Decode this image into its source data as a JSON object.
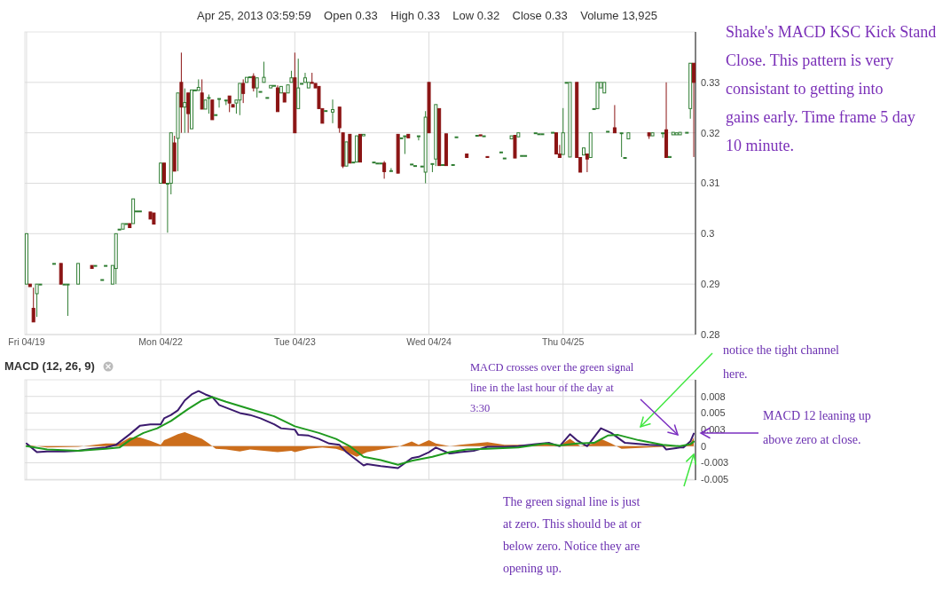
{
  "chart_data": [
    {
      "type": "candlestick",
      "annotations": [
        "Apr 25, 2013 03:59:59    Open 0.33    High 0.33    Low 0.32    Close 0.33    Volume 13,925",
        "Shake's MACD KSC Kick Stand Close.   This pattern is very consistant to getting into gains early. Time frame 5 day 10 minute."
      ],
      "categories": [
        "Fri 04/19",
        null,
        null,
        null,
        null,
        null,
        null,
        null,
        null,
        null,
        null,
        null,
        null,
        null,
        null,
        null,
        null,
        null,
        null,
        null,
        null,
        null,
        null,
        null,
        null,
        null,
        null,
        null,
        null,
        null,
        null,
        null,
        null,
        null,
        null,
        null,
        null,
        null,
        null,
        "Mon 04/22",
        null,
        null,
        null,
        null,
        null,
        null,
        null,
        null,
        null,
        null,
        null,
        null,
        null,
        null,
        null,
        null,
        null,
        null,
        null,
        null,
        null,
        null,
        null,
        null,
        null,
        null,
        null,
        null,
        null,
        null,
        null,
        null,
        null,
        null,
        null,
        null,
        null,
        null,
        "Tue 04/23",
        null,
        null,
        null,
        null,
        null,
        null,
        null,
        null,
        null,
        null,
        null,
        null,
        null,
        null,
        null,
        null,
        null,
        null,
        null,
        null,
        null,
        null,
        null,
        null,
        null,
        null,
        null,
        null,
        null,
        null,
        null,
        null,
        null,
        null,
        null,
        null,
        null,
        null,
        "Wed 04/24",
        null,
        null,
        null,
        null,
        null,
        null,
        null,
        null,
        null,
        null,
        null,
        null,
        null,
        null,
        null,
        null,
        null,
        null,
        null,
        null,
        null,
        null,
        null,
        null,
        null,
        null,
        null,
        null,
        null,
        null,
        null,
        null,
        null,
        null,
        null,
        null,
        null,
        null,
        "Thu 04/25",
        null,
        null,
        null,
        null,
        null,
        null,
        null,
        null,
        null,
        null,
        null,
        null,
        null,
        null,
        null,
        null,
        null,
        null,
        null,
        null,
        null,
        null,
        null,
        null,
        null,
        null,
        null,
        null,
        null,
        null,
        null,
        null,
        null,
        null,
        null,
        null,
        null,
        null
      ],
      "ylim": [
        0.28,
        0.34
      ],
      "yticks": [
        0.28,
        0.29,
        0.3,
        0.31,
        0.32,
        0.33
      ],
      "grid": true,
      "ohlc": [
        [
          0.29,
          0.3,
          0.29,
          0.3
        ],
        [
          0.29,
          0.29,
          0.2895,
          0.2895
        ],
        [
          0.2852,
          0.2893,
          0.2825,
          0.2825
        ],
        [
          0.2881,
          0.29,
          0.2835,
          0.29
        ],
        [
          0.29,
          0.29,
          0.29,
          0.29
        ],
        null,
        null,
        null,
        [
          0.2941,
          0.2941,
          0.2941,
          0.2941
        ],
        null,
        [
          0.2941,
          0.2941,
          0.29,
          0.29
        ],
        [
          0.29,
          0.29,
          0.29,
          0.29
        ],
        [
          0.29,
          0.29,
          0.2837,
          0.29
        ],
        null,
        null,
        [
          0.29,
          0.2941,
          0.29,
          0.2941
        ],
        null,
        null,
        null,
        [
          0.2937,
          0.2937,
          0.2931,
          0.2931
        ],
        [
          0.2937,
          0.2937,
          0.2937,
          0.2937
        ],
        null,
        [
          0.2909,
          0.2909,
          0.2909,
          0.2909
        ],
        [
          0.2937,
          0.2937,
          0.2937,
          0.2937
        ],
        null,
        [
          0.29,
          0.2937,
          0.29,
          0.2937
        ],
        [
          0.2931,
          0.3,
          0.29,
          0.3
        ],
        [
          0.3009,
          0.3009,
          0.3009,
          0.3009
        ],
        [
          0.3009,
          0.302,
          0.3009,
          0.302
        ],
        [
          0.302,
          0.302,
          0.302,
          0.302
        ],
        [
          0.302,
          0.302,
          0.3012,
          0.3012
        ],
        [
          0.302,
          0.3069,
          0.302,
          0.3069
        ],
        [
          0.3045,
          0.3045,
          0.3045,
          0.3045
        ],
        [
          0.3045,
          0.3045,
          0.3045,
          0.3045
        ],
        null,
        null,
        [
          0.3043,
          0.3043,
          0.3029,
          0.3029
        ],
        [
          0.3041,
          0.3041,
          0.3019,
          0.3019
        ],
        null,
        [
          0.31,
          0.314,
          0.31,
          0.314
        ],
        [
          0.314,
          0.314,
          0.31,
          0.31
        ],
        [
          0.31,
          0.31,
          0.3002,
          0.31
        ],
        [
          0.31,
          0.32,
          0.3078,
          0.32
        ],
        [
          0.318,
          0.3194,
          0.3124,
          0.3124
        ],
        [
          0.3189,
          0.3279,
          0.3124,
          0.3279
        ],
        [
          0.33,
          0.3359,
          0.32,
          0.3251
        ],
        [
          0.3251,
          0.3288,
          0.32,
          0.326
        ],
        [
          0.3279,
          0.3279,
          0.32,
          0.3238
        ],
        [
          0.3208,
          0.3285,
          0.3208,
          0.3285
        ],
        [
          0.3285,
          0.3285,
          0.3285,
          0.3285
        ],
        [
          0.3284,
          0.3306,
          0.3284,
          0.329
        ],
        [
          0.3279,
          0.3306,
          0.3247,
          0.3247
        ],
        [
          0.3247,
          0.3265,
          0.3247,
          0.3265
        ],
        [
          0.327,
          0.3276,
          0.3238,
          0.327
        ],
        [
          0.3265,
          0.3265,
          0.3226,
          0.3226
        ],
        [
          0.3236,
          0.3236,
          0.3236,
          0.3236
        ],
        [
          0.3268,
          0.3268,
          0.325,
          0.3268
        ],
        null,
        [
          0.3265,
          0.3265,
          0.3255,
          0.3265
        ],
        [
          0.3273,
          0.3273,
          0.3241,
          0.3259
        ],
        [
          0.3256,
          0.3256,
          0.3251,
          0.3251
        ],
        [
          0.3259,
          0.3265,
          0.3238,
          0.3265
        ],
        [
          0.3265,
          0.3298,
          0.3235,
          0.3298
        ],
        [
          0.3298,
          0.3306,
          0.3259,
          0.3278
        ],
        [
          0.33,
          0.331,
          0.33,
          0.331
        ],
        [
          0.3311,
          0.3311,
          0.3311,
          0.3311
        ],
        [
          0.3312,
          0.3318,
          0.3282,
          0.3289
        ],
        [
          0.3289,
          0.3309,
          0.327,
          0.3309
        ],
        [
          0.3282,
          0.3282,
          0.3282,
          0.3282
        ],
        [
          0.33,
          0.3341,
          0.33,
          0.331
        ],
        [
          0.327,
          0.327,
          0.327,
          0.327
        ],
        [
          0.3289,
          0.3294,
          0.3289,
          0.3294
        ],
        [
          0.3294,
          0.3294,
          0.3294,
          0.3294
        ],
        [
          0.3289,
          0.3294,
          0.3242,
          0.3242
        ],
        [
          0.3279,
          0.3292,
          0.3279,
          0.3292
        ],
        [
          0.3279,
          0.3279,
          0.3261,
          0.3261
        ],
        [
          0.3279,
          0.3295,
          0.3279,
          0.3295
        ],
        [
          0.33,
          0.3323,
          0.33,
          0.3309
        ],
        [
          0.3309,
          0.3359,
          0.32,
          0.32
        ],
        [
          0.3248,
          0.3347,
          0.3248,
          0.3289
        ],
        [
          0.3298,
          0.3298,
          0.3298,
          0.3298
        ],
        [
          0.33,
          0.3319,
          0.33,
          0.3309
        ],
        [
          0.3289,
          0.33,
          0.3289,
          0.33
        ],
        [
          0.33,
          0.3319,
          0.3298,
          0.3298
        ],
        [
          0.3298,
          0.3298,
          0.3289,
          0.3289
        ],
        [
          0.3292,
          0.3292,
          0.3248,
          0.3248
        ],
        [
          0.3248,
          0.3248,
          0.3219,
          0.3219
        ],
        [
          0.3244,
          0.3244,
          0.3244,
          0.3244
        ],
        null,
        [
          0.3241,
          0.3266,
          0.3219,
          0.3246
        ],
        null,
        [
          0.3251,
          0.3251,
          0.32,
          0.321
        ],
        [
          0.32,
          0.32,
          0.313,
          0.3134
        ],
        [
          0.3134,
          0.3182,
          0.3134,
          0.3182
        ],
        [
          0.3197,
          0.3197,
          0.314,
          0.314
        ],
        [
          0.3142,
          0.3142,
          0.3142,
          0.3142
        ],
        [
          0.3142,
          0.3194,
          0.3142,
          0.3194
        ],
        [
          0.3197,
          0.3197,
          0.3142,
          0.3142
        ],
        [
          0.3194,
          0.3197,
          0.3194,
          0.3197
        ],
        null,
        null,
        [
          0.3142,
          0.3142,
          0.3142,
          0.3142
        ],
        [
          0.314,
          0.314,
          0.314,
          0.314
        ],
        [
          0.314,
          0.314,
          0.314,
          0.314
        ],
        [
          0.314,
          0.3144,
          0.3109,
          0.3123
        ],
        null,
        [
          0.3125,
          0.313,
          0.3125,
          0.3125
        ],
        null,
        [
          0.3197,
          0.3197,
          0.312,
          0.312
        ],
        [
          0.319,
          0.319,
          0.319,
          0.319
        ],
        [
          0.3194,
          0.3194,
          0.3158,
          0.3194
        ],
        [
          0.3197,
          0.3197,
          0.319,
          0.319
        ],
        [
          0.3138,
          0.3138,
          0.3138,
          0.3138
        ],
        [
          0.3135,
          0.3135,
          0.3135,
          0.3135
        ],
        [
          0.3194,
          0.3194,
          0.3185,
          0.3194
        ],
        [
          0.3134,
          0.3134,
          0.3134,
          0.3134
        ],
        [
          0.3122,
          0.3243,
          0.31,
          0.3231
        ],
        [
          0.33,
          0.33,
          0.32,
          0.32
        ],
        [
          0.3139,
          0.3139,
          0.3122,
          0.3139
        ],
        [
          0.3148,
          0.3256,
          0.3134,
          0.3256
        ],
        [
          0.3248,
          0.3248,
          0.3135,
          0.3135
        ],
        [
          0.3137,
          0.3137,
          0.3137,
          0.3137
        ],
        [
          0.3198,
          0.3198,
          0.3135,
          0.3135
        ],
        null,
        [
          0.3137,
          0.3137,
          0.3137,
          0.3137
        ],
        [
          0.3192,
          0.3192,
          0.3192,
          0.3192
        ],
        null,
        null,
        [
          0.3158,
          0.3158,
          0.3151,
          0.3151
        ],
        null,
        null,
        [
          0.3195,
          0.3195,
          0.3195,
          0.3195
        ],
        [
          0.3196,
          0.3196,
          0.3194,
          0.3194
        ],
        [
          0.3194,
          0.3194,
          0.3194,
          0.3194
        ],
        [
          0.3153,
          0.3153,
          0.3151,
          0.3151
        ],
        null,
        null,
        null,
        [
          0.3162,
          0.3162,
          0.3162,
          0.3162
        ],
        [
          0.315,
          0.315,
          0.315,
          0.315
        ],
        null,
        [
          0.3188,
          0.3194,
          0.3188,
          0.3194
        ],
        [
          0.3195,
          0.3195,
          0.315,
          0.315
        ],
        [
          0.3192,
          0.32,
          0.3192,
          0.32
        ],
        [
          0.3155,
          0.3155,
          0.3155,
          0.3155
        ],
        [
          0.3155,
          0.3155,
          0.3155,
          0.3155
        ],
        null,
        null,
        [
          0.32,
          0.32,
          0.32,
          0.32
        ],
        [
          0.3198,
          0.3198,
          0.3198,
          0.3198
        ],
        [
          0.3198,
          0.3198,
          0.3198,
          0.3198
        ],
        null,
        null,
        [
          0.3201,
          0.3201,
          0.3201,
          0.3201
        ],
        [
          0.32,
          0.32,
          0.3158,
          0.3158
        ],
        [
          0.3158,
          0.3176,
          0.3151,
          0.3151
        ],
        [
          0.3157,
          0.3249,
          0.3157,
          0.32
        ],
        [
          0.33,
          0.33,
          0.33,
          0.33
        ],
        [
          0.3152,
          0.33,
          0.3152,
          0.33
        ],
        null,
        [
          0.33,
          0.33,
          0.3151,
          0.3151
        ],
        [
          0.3151,
          0.3151,
          0.3122,
          0.3122
        ],
        [
          0.3156,
          0.317,
          0.3156,
          0.317
        ],
        [
          0.3158,
          0.3158,
          0.3122,
          0.3148
        ],
        [
          0.3151,
          0.32,
          0.3151,
          0.32
        ],
        [
          0.3248,
          0.3248,
          0.3248,
          0.3248
        ],
        [
          0.3248,
          0.33,
          0.3248,
          0.33
        ],
        [
          0.3289,
          0.33,
          0.3289,
          0.33
        ],
        [
          0.3279,
          0.33,
          0.3279,
          0.33
        ],
        [
          0.3203,
          0.3203,
          0.3203,
          0.3203
        ],
        null,
        [
          0.321,
          0.3255,
          0.32,
          0.32
        ],
        null,
        [
          0.32,
          0.32,
          0.3152,
          0.32
        ],
        [
          0.3151,
          0.3151,
          0.3151,
          0.3151
        ],
        [
          0.3188,
          0.32,
          0.3188,
          0.32
        ],
        null,
        null,
        null,
        null,
        null,
        [
          0.32,
          0.32,
          0.3188,
          0.3194
        ],
        [
          0.3194,
          0.32,
          0.3194,
          0.32
        ],
        null,
        null,
        [
          0.32,
          0.32,
          0.319,
          0.32
        ],
        [
          0.3206,
          0.33,
          0.3151,
          0.3151
        ],
        [
          0.3151,
          0.3153,
          0.3151,
          0.3153
        ],
        [
          0.3196,
          0.3201,
          0.3196,
          0.3201
        ],
        [
          0.3196,
          0.32,
          0.3196,
          0.32
        ],
        [
          0.3196,
          0.3201,
          0.3196,
          0.3201
        ],
        null,
        [
          0.3201,
          0.3201,
          0.3201,
          0.3201
        ],
        [
          0.3248,
          0.3338,
          0.3228,
          0.3338
        ],
        [
          0.3338,
          0.3338,
          0.3152,
          0.33
        ]
      ]
    },
    {
      "type": "line",
      "title": "MACD (12, 26, 9)",
      "annotations": [
        "MACD crosses over the green signal line in the last hour of the day at 3:30",
        "notice the tight channel here.",
        "MACD 12 leaning up above zero at close.",
        "The green signal line is just at zero.  This should be at or below zero.  Notice they are opening up."
      ],
      "categories": [
        null,
        null,
        null,
        null,
        null,
        null,
        null,
        null,
        null,
        null,
        null,
        null,
        null,
        null,
        null,
        null,
        null,
        null,
        null,
        null,
        null,
        null,
        null,
        null,
        null,
        null,
        null,
        null,
        null,
        null,
        null,
        null,
        null,
        null,
        null,
        null,
        null,
        null,
        null,
        null,
        null,
        null,
        null,
        null,
        null,
        null,
        null,
        null,
        null,
        null,
        null,
        null,
        null,
        null,
        null,
        null,
        null,
        null,
        null,
        null,
        null,
        null,
        null,
        null,
        null,
        null,
        null,
        null,
        null,
        null,
        null,
        null,
        null,
        null,
        null,
        null,
        null,
        null,
        null,
        null,
        null,
        null,
        null,
        null,
        null,
        null,
        null,
        null,
        null,
        null,
        null,
        null,
        null,
        null,
        null,
        null,
        null,
        null,
        null,
        null,
        null,
        null,
        null,
        null,
        null,
        null,
        null,
        null,
        null,
        null,
        null,
        null,
        null,
        null,
        null,
        null,
        null,
        null,
        null,
        null,
        null,
        null,
        null,
        null,
        null,
        null,
        null,
        null,
        null,
        null,
        null,
        null,
        null,
        null,
        null,
        null,
        null,
        null,
        null,
        null,
        null,
        null,
        null,
        null,
        null,
        null,
        null,
        null,
        null,
        null,
        null,
        null,
        null,
        null,
        null,
        null,
        null,
        null,
        null,
        null,
        null,
        null,
        null,
        null,
        null,
        null,
        null,
        null,
        null,
        null,
        null,
        null,
        null,
        null,
        null,
        null,
        null,
        null,
        null,
        null,
        null,
        null,
        null,
        null,
        null,
        null,
        null,
        null,
        null,
        null,
        null,
        null,
        null,
        null,
        null
      ],
      "ylim": [
        -0.0051,
        0.01
      ],
      "yticks": [
        {
          "value": 0.0075,
          "label": "0.008"
        },
        0.005,
        {
          "value": 0.0025,
          "label": "0.003"
        },
        0,
        {
          "value": -0.0025,
          "label": "-0.003"
        },
        -0.005
      ],
      "grid": true,
      "series": [
        {
          "type": "area",
          "color": "#cc6e1c",
          "values": [
            0.0002,
            null,
            null,
            null,
            null,
            null,
            -0.0002,
            null,
            null,
            null,
            null,
            null,
            null,
            null,
            null,
            -0.0001,
            null,
            null,
            null,
            null,
            null,
            null,
            null,
            0.0004,
            null,
            null,
            null,
            0.0004,
            null,
            null,
            0.0013,
            null,
            null,
            0.0013,
            null,
            null,
            0.0008,
            null,
            null,
            0.0002,
            0.0009,
            0.0011,
            null,
            null,
            0.0018,
            null,
            0.0021,
            null,
            0.0017,
            null,
            null,
            0.0011,
            null,
            0.0004,
            null,
            -0.0004,
            null,
            null,
            -0.0005,
            null,
            null,
            null,
            -0.0008,
            null,
            null,
            -0.0005,
            null,
            null,
            null,
            -0.0007,
            null,
            null,
            null,
            -0.0009,
            null,
            null,
            null,
            -0.0007,
            -0.0009,
            null,
            null,
            null,
            -0.0004,
            null,
            null,
            null,
            -0.0002,
            null,
            null,
            null,
            -0.0004,
            null,
            null,
            -0.0009,
            null,
            null,
            -0.0016,
            null,
            null,
            -0.0009,
            null,
            null,
            null,
            -0.0005,
            null,
            null,
            null,
            null,
            -0.0001,
            null,
            null,
            null,
            0.0007,
            null,
            0.0002,
            null,
            null,
            0.0009,
            null,
            0.0004,
            null,
            null,
            null,
            0,
            null,
            null,
            0.0002,
            null,
            null,
            null,
            null,
            null,
            null,
            null,
            0.0006,
            null,
            null,
            null,
            null,
            0.0002,
            null,
            null,
            null,
            null,
            null,
            null,
            null,
            null,
            0.0002,
            null,
            null,
            null,
            0.0004,
            null,
            null,
            0.0001,
            null,
            null,
            0.0011,
            null,
            null,
            0,
            null,
            null,
            null,
            0.0004,
            null,
            0.0011,
            null,
            null,
            0.0004,
            null,
            null,
            -0.0004,
            null,
            null,
            null,
            null,
            null,
            null,
            null,
            -0.0002,
            null,
            null,
            null,
            -0.0001,
            null,
            null,
            null,
            null,
            0,
            null,
            null,
            0.0004,
            0.0013
          ]
        },
        {
          "type": "line",
          "color": "#3b1a6e",
          "values": [
            0.0004,
            null,
            null,
            -0.0009,
            null,
            null,
            -0.0008,
            null,
            null,
            null,
            null,
            -0.0008,
            null,
            null,
            null,
            -0.0007,
            null,
            null,
            null,
            -0.0004,
            null,
            null,
            null,
            -0.0002,
            null,
            null,
            0.0002,
            null,
            null,
            null,
            0.0018,
            null,
            null,
            0.0031,
            null,
            null,
            0.0033,
            null,
            null,
            0.0033,
            0.0042,
            null,
            0.0047,
            null,
            0.0054,
            null,
            0.0069,
            null,
            0.0078,
            null,
            0.0083,
            null,
            0.0078,
            null,
            0.0074,
            null,
            0.0062,
            null,
            0.0058,
            null,
            null,
            null,
            0.005,
            null,
            null,
            0.0047,
            null,
            null,
            0.0042,
            null,
            null,
            null,
            0.0033,
            null,
            0.0027,
            null,
            null,
            null,
            0.0025,
            0.0017,
            null,
            null,
            0.0016,
            null,
            null,
            0.0011,
            null,
            null,
            0.0004,
            null,
            null,
            0.0002,
            null,
            -0.0009,
            null,
            null,
            null,
            null,
            -0.0029,
            -0.0027,
            null,
            null,
            null,
            -0.003,
            null,
            null,
            null,
            null,
            -0.0033,
            null,
            null,
            null,
            -0.0018,
            null,
            -0.0016,
            null,
            null,
            -0.0009,
            null,
            -0.0002,
            null,
            null,
            null,
            -0.0011,
            null,
            null,
            -0.0009,
            null,
            null,
            null,
            -0.0007,
            null,
            null,
            null,
            -0.0001,
            null,
            null,
            null,
            null,
            -0.0001,
            null,
            null,
            null,
            0,
            null,
            null,
            null,
            null,
            0.0003,
            null,
            null,
            null,
            0.0005,
            null,
            null,
            0,
            null,
            null,
            0.0018,
            null,
            0.0009,
            null,
            null,
            0,
            null,
            null,
            null,
            0.0027,
            null,
            null,
            0.002,
            null,
            null,
            null,
            0.0005,
            null,
            null,
            null,
            null,
            null,
            null,
            0.0002,
            null,
            null,
            null,
            0.0001,
            -0.0005,
            null,
            null,
            null,
            -0.0002,
            -0.0002,
            null,
            0.0007,
            0.0019
          ]
        },
        {
          "type": "line",
          "color": "#1f9a1f",
          "values": [
            0,
            null,
            null,
            null,
            null,
            null,
            -0.0005,
            null,
            null,
            null,
            null,
            null,
            null,
            null,
            null,
            -0.0007,
            null,
            null,
            null,
            null,
            null,
            null,
            null,
            -0.0004,
            null,
            null,
            null,
            -0.0002,
            null,
            null,
            0.0009,
            null,
            null,
            null,
            0.002,
            null,
            null,
            null,
            0.0027,
            null,
            null,
            null,
            0.0038,
            null,
            null,
            null,
            null,
            0.0056,
            null,
            null,
            null,
            0.0069,
            null,
            null,
            0.0074,
            null,
            null,
            null,
            0.0067,
            null,
            null,
            null,
            null,
            null,
            null,
            0.0056,
            null,
            null,
            null,
            null,
            null,
            null,
            0.0045,
            null,
            null,
            null,
            null,
            null,
            0.003,
            null,
            null,
            null,
            null,
            null,
            null,
            0.002,
            null,
            null,
            null,
            null,
            0.0011,
            null,
            null,
            null,
            0,
            null,
            null,
            null,
            -0.0016,
            null,
            null,
            null,
            null,
            -0.0021,
            null,
            null,
            null,
            null,
            -0.0028,
            null,
            null,
            null,
            -0.0022,
            null,
            null,
            null,
            null,
            null,
            -0.0016,
            null,
            null,
            null,
            null,
            -0.0009,
            null,
            null,
            null,
            null,
            -0.0005,
            null,
            null,
            null,
            null,
            null,
            -0.0004,
            null,
            null,
            null,
            null,
            null,
            null,
            null,
            null,
            -0.0002,
            null,
            null,
            null,
            null,
            null,
            null,
            null,
            0.0004,
            null,
            null,
            null,
            0.0001,
            null,
            null,
            null,
            null,
            0.0004,
            null,
            null,
            null,
            null,
            0.0005,
            null,
            null,
            null,
            0.0016,
            null,
            null,
            0.0017,
            null,
            null,
            null,
            null,
            null,
            0.0009,
            null,
            null,
            null,
            null,
            null,
            null,
            0.0002,
            null,
            null,
            null,
            null,
            0,
            null,
            null,
            0.0003,
            0.0007
          ]
        }
      ]
    }
  ]
}
